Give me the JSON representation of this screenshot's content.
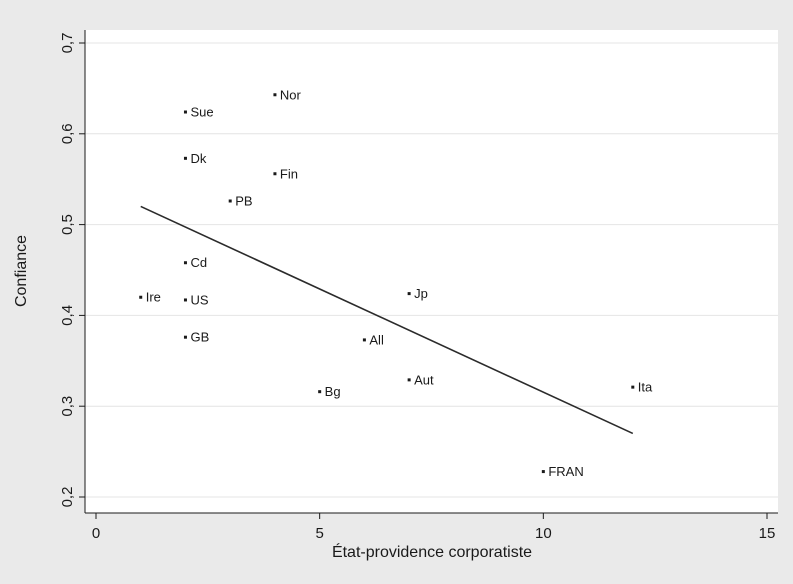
{
  "chart_data": {
    "type": "scatter",
    "xlabel": "État-providence corporatiste",
    "ylabel": "Confiance",
    "xlim": [
      0,
      15
    ],
    "ylim": [
      0.2,
      0.7
    ],
    "xticks": [
      0,
      5,
      10,
      15
    ],
    "yticks": [
      0.2,
      0.3,
      0.4,
      0.5,
      0.6,
      0.7
    ],
    "xtick_labels": [
      "0",
      "5",
      "10",
      "15"
    ],
    "ytick_labels": [
      "0,2",
      "0,3",
      "0,4",
      "0,5",
      "0,6",
      "0,7"
    ],
    "grid": "horizontal",
    "points": [
      {
        "label": "Nor",
        "x": 4,
        "y": 0.643
      },
      {
        "label": "Sue",
        "x": 2,
        "y": 0.624
      },
      {
        "label": "Dk",
        "x": 2,
        "y": 0.573
      },
      {
        "label": "Fin",
        "x": 4,
        "y": 0.556
      },
      {
        "label": "PB",
        "x": 3,
        "y": 0.526
      },
      {
        "label": "Cd",
        "x": 2,
        "y": 0.458
      },
      {
        "label": "Ire",
        "x": 1,
        "y": 0.42
      },
      {
        "label": "US",
        "x": 2,
        "y": 0.417
      },
      {
        "label": "GB",
        "x": 2,
        "y": 0.376
      },
      {
        "label": "Jp",
        "x": 7,
        "y": 0.424
      },
      {
        "label": "All",
        "x": 6,
        "y": 0.373
      },
      {
        "label": "Aut",
        "x": 7,
        "y": 0.329
      },
      {
        "label": "Bg",
        "x": 5,
        "y": 0.316
      },
      {
        "label": "Ita",
        "x": 12,
        "y": 0.321
      },
      {
        "label": "FRAN",
        "x": 10,
        "y": 0.228
      }
    ],
    "fit_line": {
      "x": [
        1,
        12
      ],
      "y": [
        0.52,
        0.27
      ]
    },
    "colors": {
      "background": "#eaeaea",
      "plot_bg": "#ffffff",
      "grid": "#e4e4e4",
      "marks": "#1a1a1a"
    }
  }
}
